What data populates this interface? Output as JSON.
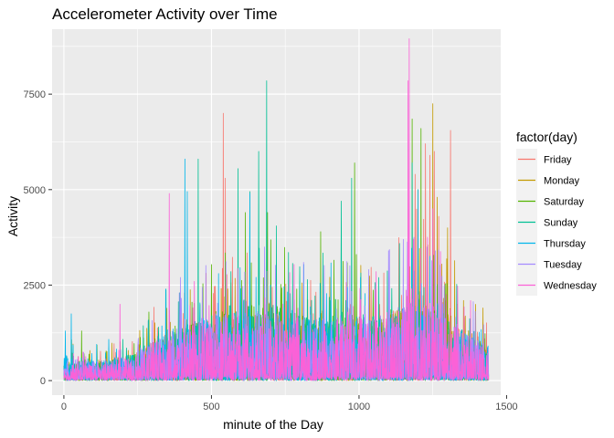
{
  "chart_data": {
    "type": "line",
    "title": "Accelerometer Activity over Time",
    "xlabel": "minute of the Day",
    "ylabel": "Activity",
    "xlim": [
      -40,
      1480
    ],
    "ylim": [
      -380,
      9200
    ],
    "x_ticks": [
      0,
      500,
      1000,
      1500
    ],
    "y_ticks": [
      0,
      2500,
      5000,
      7500
    ],
    "grid": true,
    "background": "#ebebeb",
    "legend": {
      "title": "factor(day)",
      "position": "right"
    },
    "series": [
      {
        "name": "Friday",
        "color": "#f8766d",
        "profile": [
          [
            0,
            500
          ],
          [
            120,
            450
          ],
          [
            240,
            700
          ],
          [
            360,
            1300
          ],
          [
            480,
            1500
          ],
          [
            600,
            1800
          ],
          [
            720,
            1700
          ],
          [
            840,
            1600
          ],
          [
            960,
            1600
          ],
          [
            1080,
            1700
          ],
          [
            1200,
            2400
          ],
          [
            1320,
            1600
          ],
          [
            1439,
            800
          ]
        ],
        "peaks": [
          [
            540,
            7000
          ],
          [
            547,
            5300
          ],
          [
            1190,
            5400
          ],
          [
            1225,
            6200
          ],
          [
            1240,
            5900
          ],
          [
            1255,
            6000
          ],
          [
            1270,
            4300
          ],
          [
            1310,
            6550
          ]
        ]
      },
      {
        "name": "Monday",
        "color": "#c49a00",
        "profile": [
          [
            0,
            550
          ],
          [
            120,
            500
          ],
          [
            240,
            650
          ],
          [
            360,
            1300
          ],
          [
            480,
            1500
          ],
          [
            600,
            1750
          ],
          [
            720,
            1700
          ],
          [
            840,
            1500
          ],
          [
            960,
            1600
          ],
          [
            1080,
            1650
          ],
          [
            1200,
            2300
          ],
          [
            1320,
            1700
          ],
          [
            1439,
            850
          ]
        ],
        "peaks": [
          [
            555,
            2400
          ],
          [
            1200,
            5000
          ],
          [
            1250,
            7250
          ],
          [
            1265,
            4800
          ],
          [
            1300,
            4000
          ],
          [
            1420,
            1900
          ]
        ]
      },
      {
        "name": "Saturday",
        "color": "#53b400",
        "profile": [
          [
            0,
            600
          ],
          [
            120,
            550
          ],
          [
            240,
            700
          ],
          [
            360,
            1400
          ],
          [
            480,
            1700
          ],
          [
            600,
            2100
          ],
          [
            720,
            2000
          ],
          [
            840,
            1700
          ],
          [
            960,
            1800
          ],
          [
            1080,
            1600
          ],
          [
            1200,
            2500
          ],
          [
            1320,
            1500
          ],
          [
            1439,
            800
          ]
        ],
        "peaks": [
          [
            60,
            1300
          ],
          [
            615,
            4400
          ],
          [
            690,
            4400
          ],
          [
            870,
            3900
          ],
          [
            985,
            5700
          ],
          [
            1180,
            6850
          ],
          [
            1210,
            6600
          ]
        ]
      },
      {
        "name": "Sunday",
        "color": "#00c094",
        "profile": [
          [
            0,
            650
          ],
          [
            120,
            500
          ],
          [
            240,
            750
          ],
          [
            360,
            1350
          ],
          [
            480,
            1600
          ],
          [
            600,
            2200
          ],
          [
            720,
            2100
          ],
          [
            840,
            1700
          ],
          [
            960,
            1900
          ],
          [
            1080,
            1700
          ],
          [
            1200,
            2200
          ],
          [
            1320,
            1500
          ],
          [
            1439,
            850
          ]
        ],
        "peaks": [
          [
            455,
            5800
          ],
          [
            590,
            5550
          ],
          [
            630,
            4950
          ],
          [
            660,
            6000
          ],
          [
            687,
            7850
          ],
          [
            720,
            4050
          ],
          [
            940,
            4700
          ],
          [
            975,
            5300
          ],
          [
            1180,
            5700
          ]
        ]
      },
      {
        "name": "Thursday",
        "color": "#00b6eb",
        "profile": [
          [
            0,
            750
          ],
          [
            120,
            550
          ],
          [
            240,
            700
          ],
          [
            360,
            1400
          ],
          [
            480,
            1700
          ],
          [
            600,
            1800
          ],
          [
            720,
            1700
          ],
          [
            840,
            1600
          ],
          [
            960,
            1700
          ],
          [
            1080,
            1600
          ],
          [
            1200,
            2100
          ],
          [
            1320,
            1500
          ],
          [
            1439,
            900
          ]
        ],
        "peaks": [
          [
            5,
            1300
          ],
          [
            25,
            1750
          ],
          [
            345,
            2400
          ],
          [
            410,
            5800
          ],
          [
            418,
            4950
          ],
          [
            630,
            4900
          ],
          [
            1200,
            5000
          ]
        ]
      },
      {
        "name": "Tuesday",
        "color": "#a58aff",
        "profile": [
          [
            0,
            600
          ],
          [
            120,
            500
          ],
          [
            240,
            700
          ],
          [
            360,
            1350
          ],
          [
            480,
            1600
          ],
          [
            600,
            1900
          ],
          [
            720,
            1800
          ],
          [
            840,
            1650
          ],
          [
            960,
            1750
          ],
          [
            1080,
            1700
          ],
          [
            1200,
            2300
          ],
          [
            1320,
            1600
          ],
          [
            1439,
            850
          ]
        ],
        "peaks": [
          [
            395,
            2700
          ],
          [
            680,
            3500
          ],
          [
            1100,
            3400
          ],
          [
            1150,
            3700
          ],
          [
            1230,
            3500
          ]
        ]
      },
      {
        "name": "Wednesday",
        "color": "#fb61d7",
        "profile": [
          [
            0,
            450
          ],
          [
            120,
            400
          ],
          [
            240,
            650
          ],
          [
            360,
            1300
          ],
          [
            480,
            1600
          ],
          [
            600,
            1700
          ],
          [
            720,
            1700
          ],
          [
            840,
            1600
          ],
          [
            960,
            1650
          ],
          [
            1080,
            1600
          ],
          [
            1200,
            2300
          ],
          [
            1320,
            1500
          ],
          [
            1439,
            750
          ]
        ],
        "peaks": [
          [
            190,
            2000
          ],
          [
            357,
            4900
          ],
          [
            1170,
            8950
          ],
          [
            1166,
            7850
          ],
          [
            1250,
            4500
          ]
        ]
      }
    ]
  }
}
